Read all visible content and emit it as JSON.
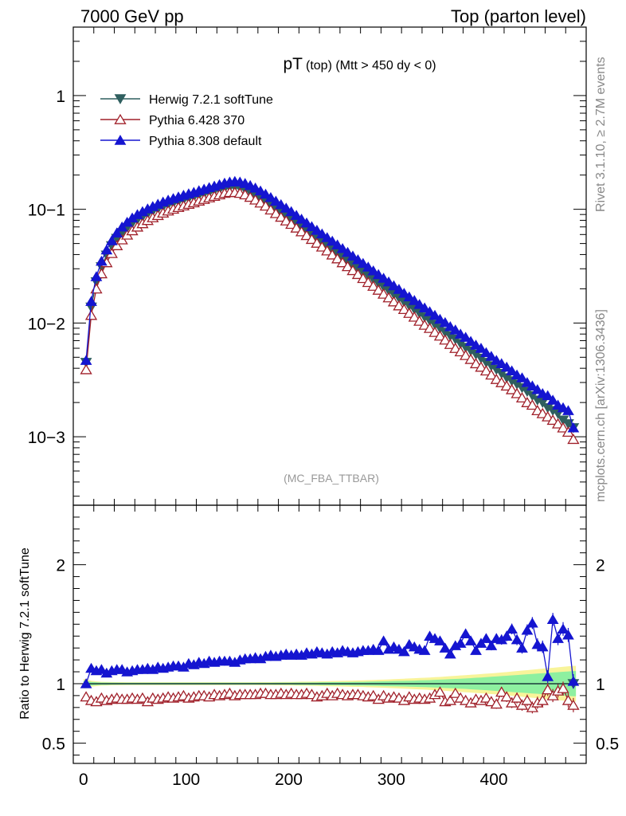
{
  "header": {
    "left": "7000 GeV pp",
    "right": "Top (parton level)"
  },
  "side_labels": {
    "rivet": "Rivet 3.1.10, ≥ 2.7M events",
    "mcplots": "mcplots.cern.ch [arXiv:1306.3436]"
  },
  "chart_data": [
    {
      "type": "line",
      "title": "pT",
      "title_sub": "(top) (Mtt > 450 dy < 0)",
      "watermark": "(MC_FBA_TTBAR)",
      "yscale": "log",
      "xlim": [
        -10,
        490
      ],
      "ylim": [
        0.00025,
        4
      ],
      "y_ticks": [
        {
          "value": 1,
          "label": "1"
        },
        {
          "value": 0.1,
          "label": "10−1"
        },
        {
          "value": 0.01,
          "label": "10−2"
        },
        {
          "value": 0.001,
          "label": "10−3"
        }
      ],
      "legend_position": "top-left",
      "x": [
        2.5,
        7.5,
        12.5,
        17.5,
        22.5,
        27.5,
        32.5,
        37.5,
        42.5,
        47.5,
        52.5,
        57.5,
        62.5,
        67.5,
        72.5,
        77.5,
        82.5,
        87.5,
        92.5,
        97.5,
        102.5,
        107.5,
        112.5,
        117.5,
        122.5,
        127.5,
        132.5,
        137.5,
        142.5,
        147.5,
        152.5,
        157.5,
        162.5,
        167.5,
        172.5,
        177.5,
        182.5,
        187.5,
        192.5,
        197.5,
        202.5,
        207.5,
        212.5,
        217.5,
        222.5,
        227.5,
        232.5,
        237.5,
        242.5,
        247.5,
        252.5,
        257.5,
        262.5,
        267.5,
        272.5,
        277.5,
        282.5,
        287.5,
        292.5,
        297.5,
        302.5,
        307.5,
        312.5,
        317.5,
        322.5,
        327.5,
        332.5,
        337.5,
        342.5,
        347.5,
        352.5,
        357.5,
        362.5,
        367.5,
        372.5,
        377.5,
        382.5,
        387.5,
        392.5,
        397.5,
        402.5,
        407.5,
        412.5,
        417.5,
        422.5,
        427.5,
        432.5,
        437.5,
        442.5,
        447.5,
        452.5,
        457.5,
        462.5,
        467.5,
        472.5,
        477.5
      ],
      "series": [
        {
          "name": "Herwig 7.2.1 softTune",
          "color": "#2f5f5f",
          "marker": "triangle-down-filled",
          "values": [
            0.0045,
            0.0138,
            0.023,
            0.0312,
            0.0395,
            0.0478,
            0.0554,
            0.0623,
            0.069,
            0.0754,
            0.081,
            0.086,
            0.091,
            0.096,
            0.1005,
            0.105,
            0.1095,
            0.113,
            0.117,
            0.121,
            0.1245,
            0.1285,
            0.1325,
            0.1365,
            0.1405,
            0.145,
            0.149,
            0.153,
            0.156,
            0.157,
            0.1545,
            0.149,
            0.142,
            0.134,
            0.126,
            0.118,
            0.1095,
            0.1015,
            0.0945,
            0.0878,
            0.0815,
            0.0756,
            0.0701,
            0.065,
            0.0603,
            0.0559,
            0.0518,
            0.048,
            0.0445,
            0.0412,
            0.0382,
            0.0354,
            0.0328,
            0.0304,
            0.0282,
            0.0261,
            0.0242,
            0.0224,
            0.0208,
            0.0193,
            0.0179,
            0.0166,
            0.0153,
            0.0142,
            0.0132,
            0.0122,
            0.0113,
            0.0105,
            0.0097,
            0.009,
            0.0083,
            0.0077,
            0.0072,
            0.0066,
            0.0061,
            0.0057,
            0.0053,
            0.0049,
            0.0045,
            0.0042,
            0.0039,
            0.0036,
            0.0033,
            0.0031,
            0.0029,
            0.0027,
            0.0025,
            0.0023,
            0.0021,
            0.002,
            0.0018,
            0.0017,
            0.0016,
            0.0014,
            0.0013,
            0.0012
          ]
        },
        {
          "name": "Pythia 6.428 370",
          "color": "#a0202a",
          "marker": "triangle-up-open",
          "values": [
            0.0039,
            0.0117,
            0.02,
            0.0272,
            0.034,
            0.041,
            0.048,
            0.054,
            0.0595,
            0.065,
            0.07,
            0.075,
            0.08,
            0.0845,
            0.0885,
            0.093,
            0.097,
            0.1005,
            0.104,
            0.1075,
            0.111,
            0.1145,
            0.1185,
            0.1225,
            0.1265,
            0.1305,
            0.1345,
            0.1385,
            0.141,
            0.141,
            0.1385,
            0.1345,
            0.128,
            0.121,
            0.114,
            0.107,
            0.099,
            0.092,
            0.0855,
            0.0793,
            0.074,
            0.0686,
            0.0636,
            0.059,
            0.0545,
            0.0505,
            0.0467,
            0.0432,
            0.0398,
            0.0368,
            0.034,
            0.0314,
            0.029,
            0.0268,
            0.0247,
            0.0228,
            0.0211,
            0.0195,
            0.018,
            0.0167,
            0.0154,
            0.0142,
            0.0132,
            0.0122,
            0.0113,
            0.0104,
            0.0096,
            0.009,
            0.0083,
            0.0077,
            0.0071,
            0.0065,
            0.006,
            0.0056,
            0.0052,
            0.0048,
            0.0044,
            0.0041,
            0.0038,
            0.0035,
            0.0032,
            0.003,
            0.0028,
            0.0026,
            0.0024,
            0.0022,
            0.002,
            0.0019,
            0.0017,
            0.0016,
            0.0015,
            0.0014,
            0.0013,
            0.0012,
            0.0011,
            0.00095
          ]
        },
        {
          "name": "Pythia 8.308 default",
          "color": "#1515d0",
          "marker": "triangle-up-filled",
          "values": [
            0.0047,
            0.0155,
            0.0256,
            0.035,
            0.044,
            0.053,
            0.062,
            0.07,
            0.077,
            0.084,
            0.09,
            0.0955,
            0.101,
            0.106,
            0.111,
            0.116,
            0.1205,
            0.1245,
            0.1285,
            0.133,
            0.137,
            0.141,
            0.146,
            0.1505,
            0.1555,
            0.16,
            0.165,
            0.17,
            0.174,
            0.176,
            0.174,
            0.169,
            0.162,
            0.154,
            0.145,
            0.136,
            0.127,
            0.118,
            0.11,
            0.1025,
            0.0955,
            0.0885,
            0.082,
            0.076,
            0.0705,
            0.0655,
            0.0608,
            0.0565,
            0.0525,
            0.0487,
            0.0452,
            0.0419,
            0.0389,
            0.0361,
            0.0335,
            0.0311,
            0.0288,
            0.0267,
            0.0248,
            0.023,
            0.0213,
            0.0198,
            0.0183,
            0.017,
            0.0158,
            0.0146,
            0.0136,
            0.0126,
            0.0117,
            0.0108,
            0.0101,
            0.0093,
            0.0087,
            0.008,
            0.0075,
            0.0069,
            0.0064,
            0.006,
            0.0055,
            0.0051,
            0.0047,
            0.0044,
            0.0041,
            0.0038,
            0.0035,
            0.0033,
            0.003,
            0.0028,
            0.0026,
            0.0024,
            0.0023,
            0.0021,
            0.0019,
            0.0018,
            0.0017,
            0.0012
          ]
        }
      ]
    },
    {
      "type": "line",
      "ylabel": "Ratio to Herwig 7.2.1 softTune",
      "yscale": "linear",
      "xlim": [
        -10,
        490
      ],
      "ylim": [
        0.33,
        2.5
      ],
      "x_ticks": [
        0,
        100,
        200,
        300,
        400
      ],
      "y_ticks": [
        {
          "value": 0.5,
          "label": "0.5"
        },
        {
          "value": 1,
          "label": "1"
        },
        {
          "value": 2,
          "label": "2"
        }
      ],
      "x": [
        2.5,
        7.5,
        12.5,
        17.5,
        22.5,
        27.5,
        32.5,
        37.5,
        42.5,
        47.5,
        52.5,
        57.5,
        62.5,
        67.5,
        72.5,
        77.5,
        82.5,
        87.5,
        92.5,
        97.5,
        102.5,
        107.5,
        112.5,
        117.5,
        122.5,
        127.5,
        132.5,
        137.5,
        142.5,
        147.5,
        152.5,
        157.5,
        162.5,
        167.5,
        172.5,
        177.5,
        182.5,
        187.5,
        192.5,
        197.5,
        202.5,
        207.5,
        212.5,
        217.5,
        222.5,
        227.5,
        232.5,
        237.5,
        242.5,
        247.5,
        252.5,
        257.5,
        262.5,
        267.5,
        272.5,
        277.5,
        282.5,
        287.5,
        292.5,
        297.5,
        302.5,
        307.5,
        312.5,
        317.5,
        322.5,
        327.5,
        332.5,
        337.5,
        342.5,
        347.5,
        352.5,
        357.5,
        362.5,
        367.5,
        372.5,
        377.5,
        382.5,
        387.5,
        392.5,
        397.5,
        402.5,
        407.5,
        412.5,
        417.5,
        422.5,
        427.5,
        432.5,
        437.5,
        442.5,
        447.5,
        452.5,
        457.5,
        462.5,
        467.5,
        472.5,
        477.5
      ],
      "band": {
        "green_halfwidth": [
          0.025,
          0.015,
          0.012,
          0.01,
          0.01,
          0.009,
          0.009,
          0.008,
          0.008,
          0.008,
          0.008,
          0.008,
          0.008,
          0.008,
          0.008,
          0.008,
          0.008,
          0.008,
          0.008,
          0.008,
          0.008,
          0.008,
          0.008,
          0.008,
          0.008,
          0.008,
          0.008,
          0.008,
          0.008,
          0.008,
          0.008,
          0.008,
          0.008,
          0.008,
          0.008,
          0.008,
          0.008,
          0.009,
          0.009,
          0.009,
          0.009,
          0.01,
          0.01,
          0.01,
          0.011,
          0.011,
          0.012,
          0.012,
          0.013,
          0.013,
          0.014,
          0.014,
          0.015,
          0.016,
          0.016,
          0.017,
          0.018,
          0.019,
          0.02,
          0.021,
          0.022,
          0.023,
          0.024,
          0.025,
          0.026,
          0.028,
          0.029,
          0.03,
          0.032,
          0.034,
          0.036,
          0.038,
          0.04,
          0.042,
          0.044,
          0.047,
          0.05,
          0.052,
          0.055,
          0.058,
          0.061,
          0.064,
          0.067,
          0.07,
          0.073,
          0.076,
          0.079,
          0.082,
          0.085,
          0.088,
          0.091,
          0.094,
          0.097,
          0.1,
          0.103,
          0.106
        ],
        "yellow_halfwidth": [
          0.04,
          0.025,
          0.02,
          0.016,
          0.015,
          0.014,
          0.013,
          0.013,
          0.012,
          0.012,
          0.012,
          0.012,
          0.012,
          0.012,
          0.012,
          0.012,
          0.012,
          0.012,
          0.012,
          0.012,
          0.012,
          0.012,
          0.012,
          0.012,
          0.012,
          0.012,
          0.012,
          0.012,
          0.012,
          0.012,
          0.012,
          0.012,
          0.012,
          0.012,
          0.013,
          0.013,
          0.013,
          0.014,
          0.014,
          0.015,
          0.015,
          0.016,
          0.017,
          0.017,
          0.018,
          0.019,
          0.02,
          0.021,
          0.022,
          0.023,
          0.024,
          0.025,
          0.026,
          0.027,
          0.028,
          0.03,
          0.031,
          0.033,
          0.034,
          0.036,
          0.038,
          0.04,
          0.042,
          0.044,
          0.046,
          0.048,
          0.05,
          0.052,
          0.055,
          0.057,
          0.06,
          0.063,
          0.066,
          0.069,
          0.072,
          0.075,
          0.078,
          0.081,
          0.084,
          0.087,
          0.09,
          0.094,
          0.098,
          0.102,
          0.106,
          0.11,
          0.114,
          0.118,
          0.122,
          0.126,
          0.13,
          0.134,
          0.138,
          0.142,
          0.146,
          0.15
        ]
      },
      "series": [
        {
          "name": "Herwig 7.2.1 softTune",
          "color": "#2f5f5f",
          "marker": "triangle-down-filled",
          "points": [
            {
              "x": 477.5,
              "y": 1.0
            }
          ]
        },
        {
          "name": "Pythia 6.428 370",
          "color": "#a0202a",
          "marker": "triangle-up-open",
          "values": [
            0.89,
            0.86,
            0.85,
            0.88,
            0.86,
            0.87,
            0.88,
            0.87,
            0.87,
            0.88,
            0.87,
            0.88,
            0.85,
            0.88,
            0.87,
            0.88,
            0.89,
            0.88,
            0.89,
            0.9,
            0.88,
            0.89,
            0.9,
            0.9,
            0.89,
            0.91,
            0.9,
            0.91,
            0.92,
            0.9,
            0.91,
            0.91,
            0.91,
            0.91,
            0.92,
            0.92,
            0.91,
            0.91,
            0.92,
            0.91,
            0.92,
            0.91,
            0.91,
            0.92,
            0.91,
            0.89,
            0.9,
            0.92,
            0.9,
            0.92,
            0.91,
            0.9,
            0.91,
            0.91,
            0.9,
            0.89,
            0.9,
            0.87,
            0.9,
            0.88,
            0.89,
            0.88,
            0.86,
            0.89,
            0.87,
            0.88,
            0.87,
            0.88,
            0.91,
            0.93,
            0.85,
            0.86,
            0.92,
            0.88,
            0.86,
            0.84,
            0.87,
            0.86,
            0.88,
            0.85,
            0.83,
            0.93,
            0.89,
            0.84,
            0.88,
            0.82,
            0.86,
            0.8,
            0.84,
            0.86,
            0.95,
            0.9,
            0.94,
            0.96,
            0.86,
            0.82
          ]
        },
        {
          "name": "Pythia 8.308 default",
          "color": "#1515d0",
          "marker": "triangle-up-filled",
          "values": [
            1.0,
            1.13,
            1.11,
            1.12,
            1.09,
            1.11,
            1.12,
            1.12,
            1.1,
            1.11,
            1.12,
            1.12,
            1.13,
            1.12,
            1.14,
            1.13,
            1.14,
            1.15,
            1.15,
            1.14,
            1.17,
            1.16,
            1.18,
            1.17,
            1.19,
            1.18,
            1.19,
            1.19,
            1.19,
            1.18,
            1.2,
            1.21,
            1.21,
            1.22,
            1.21,
            1.23,
            1.24,
            1.23,
            1.24,
            1.25,
            1.24,
            1.25,
            1.24,
            1.26,
            1.25,
            1.27,
            1.26,
            1.25,
            1.27,
            1.26,
            1.28,
            1.27,
            1.26,
            1.27,
            1.28,
            1.28,
            1.29,
            1.28,
            1.36,
            1.29,
            1.31,
            1.29,
            1.27,
            1.33,
            1.31,
            1.29,
            1.28,
            1.4,
            1.38,
            1.36,
            1.3,
            1.25,
            1.32,
            1.34,
            1.42,
            1.36,
            1.28,
            1.34,
            1.38,
            1.32,
            1.38,
            1.37,
            1.4,
            1.46,
            1.37,
            1.3,
            1.45,
            1.51,
            1.33,
            1.31,
            1.06,
            1.54,
            1.38,
            1.46,
            1.41,
            1.02
          ]
        }
      ]
    }
  ]
}
